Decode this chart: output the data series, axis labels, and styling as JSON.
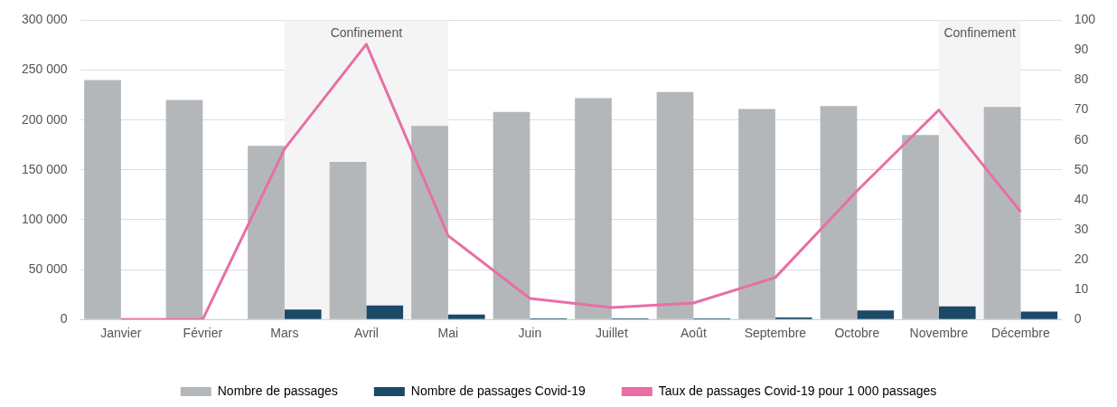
{
  "chart_data": {
    "type": "bar",
    "categories": [
      "Janvier",
      "Février",
      "Mars",
      "Avril",
      "Mai",
      "Juin",
      "Juillet",
      "Août",
      "Septembre",
      "Octobre",
      "Novembre",
      "Décembre"
    ],
    "series": [
      {
        "name": "Nombre de passages",
        "color": "#b4b7ba",
        "values": [
          240000,
          220000,
          174000,
          158000,
          194000,
          208000,
          222000,
          228000,
          211000,
          214000,
          185000,
          213000
        ]
      },
      {
        "name": "Nombre de passages Covid-19",
        "color": "#1b4a68",
        "values": [
          0,
          0,
          10000,
          14000,
          5000,
          1000,
          1000,
          1000,
          2000,
          9000,
          13000,
          8000
        ]
      },
      {
        "name": "Taux de passages Covid-19 pour 1 000 passages",
        "type": "line",
        "axis": "y2",
        "color": "#e86ea6",
        "values": [
          0,
          0,
          57,
          92,
          28,
          7,
          4,
          5.5,
          14,
          43,
          70,
          36
        ]
      }
    ],
    "ylim": [
      0,
      300000
    ],
    "yticks": [
      {
        "value": 0,
        "label": "0"
      },
      {
        "value": 50000,
        "label": "50 000"
      },
      {
        "value": 100000,
        "label": "100 000"
      },
      {
        "value": 150000,
        "label": "150 000"
      },
      {
        "value": 200000,
        "label": "200 000"
      },
      {
        "value": 250000,
        "label": "250 000"
      },
      {
        "value": 300000,
        "label": "300 000"
      }
    ],
    "y2lim": [
      0,
      100
    ],
    "y2ticks": [
      0,
      10,
      20,
      30,
      40,
      50,
      60,
      70,
      80,
      90,
      100
    ],
    "bands": [
      {
        "axis": "x",
        "from": "Mars",
        "to": "Mai",
        "label": "Confinement",
        "color": "#f4f4f4"
      },
      {
        "axis": "x",
        "from": "Novembre",
        "to": "Décembre",
        "label": "Confinement",
        "color": "#f4f4f4"
      }
    ],
    "grid": "y",
    "legend": "bottom",
    "marker": "none"
  }
}
